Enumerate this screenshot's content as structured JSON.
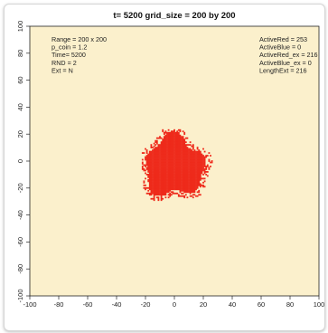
{
  "chart_data": {
    "type": "scatter",
    "title": "t= 5200 grid_size = 200 by 200",
    "xlim": [
      -100,
      100
    ],
    "ylim": [
      -100,
      100
    ],
    "x_ticks": [
      "-100",
      "-80",
      "-60",
      "-40",
      "-20",
      "0",
      "20",
      "40",
      "60",
      "80",
      "100"
    ],
    "y_ticks": [
      "-100",
      "-80",
      "-60",
      "-40",
      "-20",
      "0",
      "20",
      "40",
      "60",
      "80",
      "100"
    ],
    "grid": false,
    "legend": "none",
    "background_color": "#fbf0cc",
    "point_color": "#ee2a1b",
    "cluster": {
      "series": "ActiveRed",
      "center": [
        0,
        0
      ],
      "extent_x": [
        -22,
        28
      ],
      "extent_y": [
        -31,
        23
      ]
    },
    "info_left": [
      "Range = 200 x 200",
      "p_coin = 1.2",
      "Time= 5200",
      "RND = 2",
      "Ext = N"
    ],
    "info_right": [
      "ActiveRed = 253",
      "ActiveBlue = 0",
      "ActiveRed_ex = 216",
      "ActiveBlue_ex = 0",
      "LengthExt = 216"
    ]
  }
}
